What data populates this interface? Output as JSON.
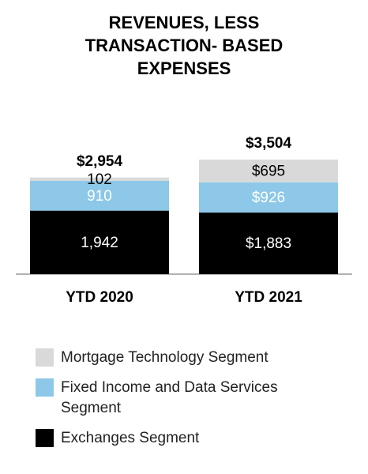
{
  "chart_data": {
    "type": "stacked_bar",
    "title": "REVENUES, LESS TRANSACTION- BASED EXPENSES",
    "categories": [
      "YTD 2020",
      "YTD 2021"
    ],
    "series": [
      {
        "name": "Exchanges Segment",
        "color": "#000000",
        "label_color": "#ffffff",
        "values": [
          1942,
          1883
        ],
        "value_labels": [
          "1,942",
          "$1,883"
        ]
      },
      {
        "name": "Fixed Income and Data Services Segment",
        "color": "#8dc8e8",
        "label_color": "#ffffff",
        "values": [
          910,
          926
        ],
        "value_labels": [
          "910",
          "$926"
        ]
      },
      {
        "name": "Mortgage Technology Segment",
        "color": "#d9d9d9",
        "label_color": "#000000",
        "values": [
          102,
          695
        ],
        "value_labels": [
          "102",
          "$695"
        ]
      }
    ],
    "totals": [
      2954,
      3504
    ],
    "total_labels": [
      "$2,954",
      "$3,504"
    ]
  }
}
